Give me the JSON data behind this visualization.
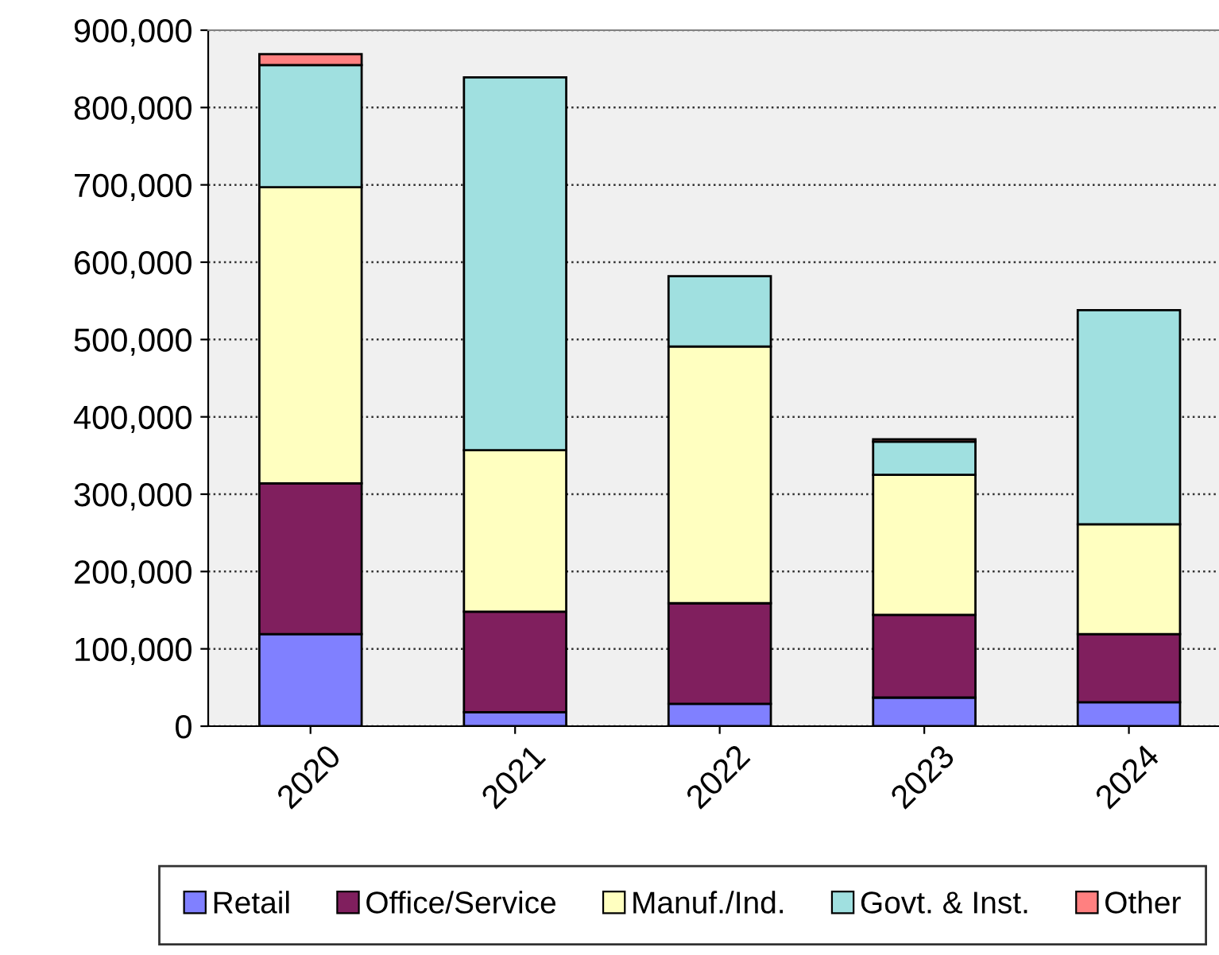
{
  "chart_data": {
    "type": "bar",
    "stacked": true,
    "categories": [
      "2020",
      "2021",
      "2022",
      "2023",
      "2024"
    ],
    "series": [
      {
        "name": "Retail",
        "color": "#8080ff",
        "values": [
          119000,
          18000,
          29000,
          37000,
          31000
        ]
      },
      {
        "name": "Office/Service",
        "color": "#801f5e",
        "values": [
          195000,
          130000,
          130000,
          107000,
          88000
        ]
      },
      {
        "name": "Manuf./Ind.",
        "color": "#ffffc0",
        "values": [
          383000,
          209000,
          332000,
          181000,
          142000
        ]
      },
      {
        "name": "Govt. & Inst.",
        "color": "#a0e0e0",
        "values": [
          158000,
          482000,
          91000,
          43000,
          277000
        ]
      },
      {
        "name": "Other",
        "color": "#ff8080",
        "values": [
          14000,
          0,
          0,
          3000,
          0
        ]
      }
    ],
    "ylim": [
      0,
      900000
    ],
    "yticks": [
      {
        "value": 0,
        "label": "0"
      },
      {
        "value": 100000,
        "label": "100,000"
      },
      {
        "value": 200000,
        "label": "200,000"
      },
      {
        "value": 300000,
        "label": "300,000"
      },
      {
        "value": 400000,
        "label": "400,000"
      },
      {
        "value": 500000,
        "label": "500,000"
      },
      {
        "value": 600000,
        "label": "600,000"
      },
      {
        "value": 700000,
        "label": "700,000"
      },
      {
        "value": 800000,
        "label": "800,000"
      },
      {
        "value": 900000,
        "label": "900,000"
      }
    ],
    "grid": "y",
    "legend": "bottom"
  }
}
